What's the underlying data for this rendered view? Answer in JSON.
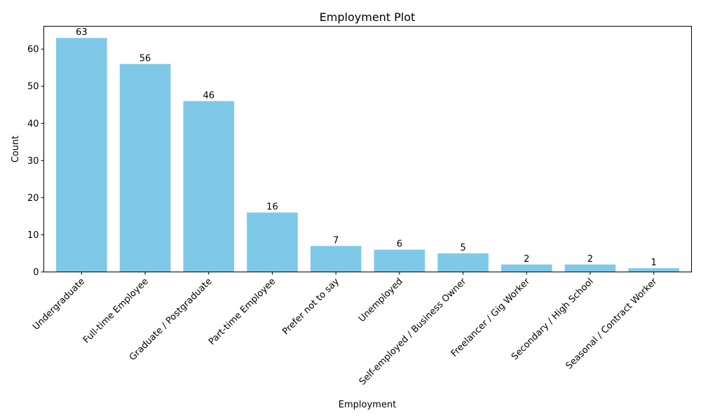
{
  "chart_data": {
    "type": "bar",
    "title": "Employment Plot",
    "xlabel": "Employment",
    "ylabel": "Count",
    "categories": [
      "Undergraduate",
      "Full-time Employee",
      "Graduate / Postgraduate",
      "Part-time Employee",
      "Prefer not to say",
      "Unemployed",
      "Self-employed / Business Owner",
      "Freelancer / Gig Worker",
      "Secondary / High School",
      "Seasonal / Contract Worker"
    ],
    "values": [
      63,
      56,
      46,
      16,
      7,
      6,
      5,
      2,
      2,
      1
    ],
    "ylim": [
      0,
      66.15
    ],
    "yticks": [
      0,
      10,
      20,
      30,
      40,
      50,
      60
    ],
    "bar_color": "#7ec8e8",
    "grid": false,
    "legend": "none"
  }
}
